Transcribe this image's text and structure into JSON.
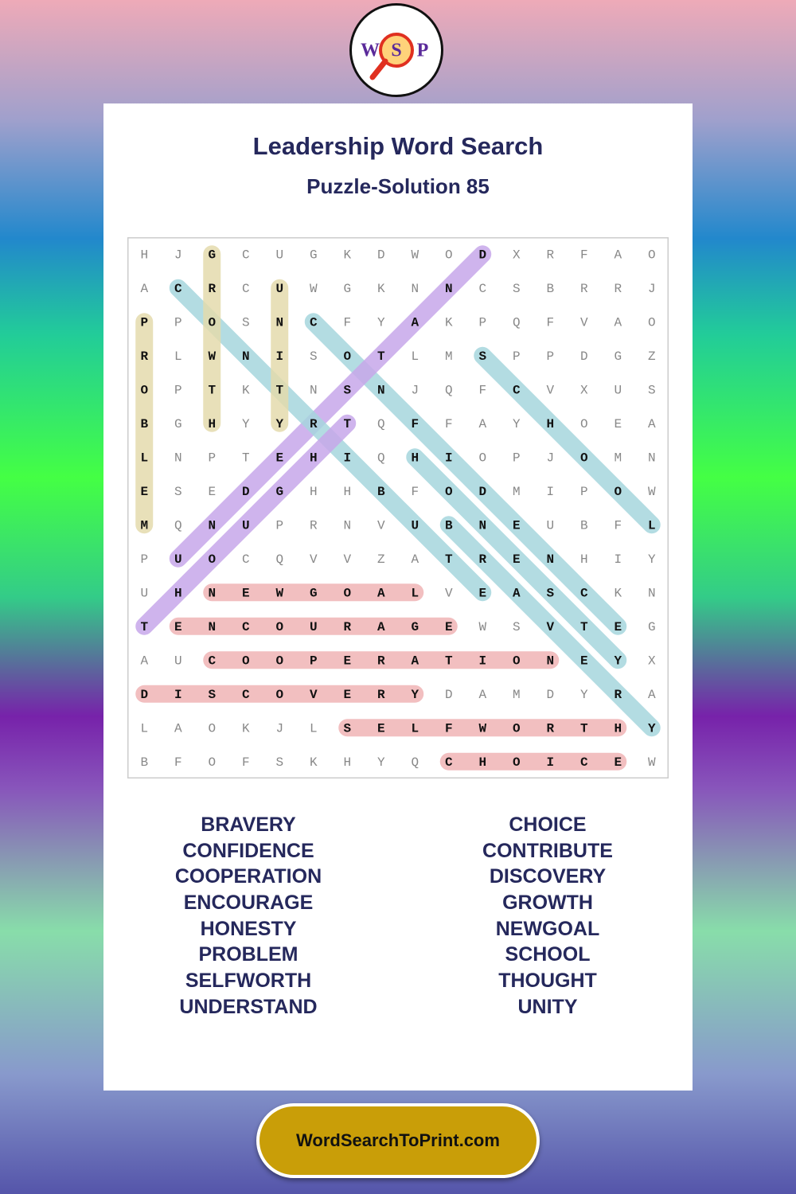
{
  "logo": {
    "letters": [
      "W",
      "S",
      "P"
    ]
  },
  "header": {
    "title": "Leadership Word Search",
    "subtitle": "Puzzle-Solution 85"
  },
  "grid": [
    [
      "H",
      "J",
      "G",
      "C",
      "U",
      "G",
      "K",
      "D",
      "W",
      "O",
      "D",
      "X",
      "R",
      "F",
      "A",
      "O"
    ],
    [
      "A",
      "C",
      "R",
      "C",
      "U",
      "W",
      "G",
      "K",
      "N",
      "N",
      "C",
      "S",
      "B",
      "R",
      "R",
      "J"
    ],
    [
      "P",
      "P",
      "O",
      "S",
      "N",
      "C",
      "F",
      "Y",
      "A",
      "K",
      "P",
      "Q",
      "F",
      "V",
      "A",
      "O"
    ],
    [
      "R",
      "L",
      "W",
      "N",
      "I",
      "S",
      "O",
      "T",
      "L",
      "M",
      "S",
      "P",
      "P",
      "D",
      "G",
      "Z"
    ],
    [
      "O",
      "P",
      "T",
      "K",
      "T",
      "N",
      "S",
      "N",
      "J",
      "Q",
      "F",
      "C",
      "V",
      "X",
      "U",
      "S"
    ],
    [
      "B",
      "G",
      "H",
      "Y",
      "Y",
      "R",
      "T",
      "Q",
      "F",
      "F",
      "A",
      "Y",
      "H",
      "O",
      "E",
      "A"
    ],
    [
      "L",
      "N",
      "P",
      "T",
      "E",
      "H",
      "I",
      "Q",
      "H",
      "I",
      "O",
      "P",
      "J",
      "O",
      "M",
      "N"
    ],
    [
      "E",
      "S",
      "E",
      "D",
      "G",
      "H",
      "H",
      "B",
      "F",
      "O",
      "D",
      "M",
      "I",
      "P",
      "O",
      "W"
    ],
    [
      "M",
      "Q",
      "N",
      "U",
      "P",
      "R",
      "N",
      "V",
      "U",
      "B",
      "N",
      "E",
      "U",
      "B",
      "F",
      "L"
    ],
    [
      "P",
      "U",
      "O",
      "C",
      "Q",
      "V",
      "V",
      "Z",
      "A",
      "T",
      "R",
      "E",
      "N",
      "H",
      "I",
      "Y"
    ],
    [
      "U",
      "H",
      "N",
      "E",
      "W",
      "G",
      "O",
      "A",
      "L",
      "V",
      "E",
      "A",
      "S",
      "C",
      "K",
      "N"
    ],
    [
      "T",
      "E",
      "N",
      "C",
      "O",
      "U",
      "R",
      "A",
      "G",
      "E",
      "W",
      "S",
      "V",
      "T",
      "E",
      "G"
    ],
    [
      "A",
      "U",
      "C",
      "O",
      "O",
      "P",
      "E",
      "R",
      "A",
      "T",
      "I",
      "O",
      "N",
      "E",
      "Y",
      "X"
    ],
    [
      "D",
      "I",
      "S",
      "C",
      "O",
      "V",
      "E",
      "R",
      "Y",
      "D",
      "A",
      "M",
      "D",
      "Y",
      "R",
      "A"
    ],
    [
      "L",
      "A",
      "O",
      "K",
      "J",
      "L",
      "S",
      "E",
      "L",
      "F",
      "W",
      "O",
      "R",
      "T",
      "H",
      "Y"
    ],
    [
      "B",
      "F",
      "O",
      "F",
      "S",
      "K",
      "H",
      "Y",
      "Q",
      "C",
      "H",
      "O",
      "I",
      "C",
      "E",
      "W"
    ]
  ],
  "words_left": [
    "BRAVERY",
    "CONFIDENCE",
    "COOPERATION",
    "ENCOURAGE",
    "HONESTY",
    "PROBLEM",
    "SELFWORTH",
    "UNDERSTAND"
  ],
  "words_right": [
    "CHOICE",
    "CONTRIBUTE",
    "DISCOVERY",
    "GROWTH",
    "NEWGOAL",
    "SCHOOL",
    "THOUGHT",
    "UNITY"
  ],
  "footer": {
    "site": "WordSearchToPrint.com"
  }
}
